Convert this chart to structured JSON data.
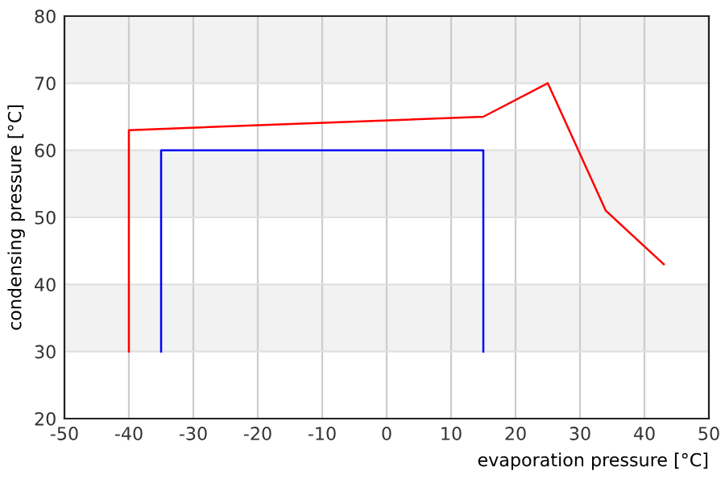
{
  "chart_data": {
    "type": "line",
    "xlabel": "evaporation pressure [°C]",
    "ylabel": "condensing pressure [°C]",
    "series": [
      {
        "color": "#ff0000",
        "x": [
          -40,
          -40,
          15,
          25,
          34,
          43
        ],
        "values": [
          30,
          63,
          65,
          70,
          51,
          43
        ]
      },
      {
        "color": "#0000ff",
        "x": [
          -35,
          -35,
          15,
          15
        ],
        "values": [
          30,
          60,
          60,
          30
        ]
      }
    ],
    "xlim": [
      -50,
      50
    ],
    "xticks": [
      -50,
      -40,
      -30,
      -20,
      -10,
      0,
      10,
      20,
      30,
      40,
      50
    ],
    "ylim": [
      20,
      80
    ],
    "yticks": [
      20,
      30,
      40,
      50,
      60,
      70,
      80
    ],
    "bands": [
      {
        "axis": "y",
        "from": 30,
        "to": 40,
        "color": "#f2f2f2"
      },
      {
        "axis": "y",
        "from": 50,
        "to": 60,
        "color": "#f2f2f2"
      },
      {
        "axis": "y",
        "from": 70,
        "to": 80,
        "color": "#f2f2f2"
      }
    ],
    "grid": true,
    "marker": "none",
    "line_style": "solid"
  }
}
